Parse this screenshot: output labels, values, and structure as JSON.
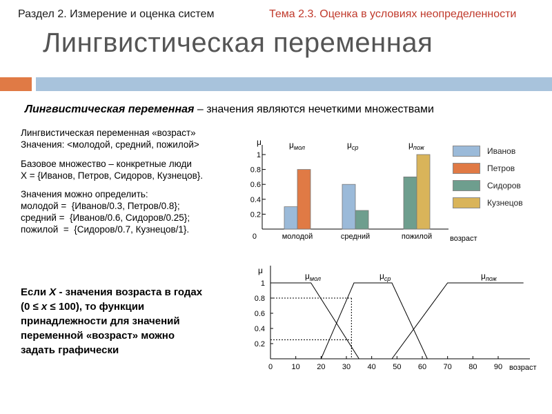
{
  "header": {
    "left": "Раздел 2. Измерение и оценка систем",
    "right": "Тема 2.3. Оценка в условиях неопределенности"
  },
  "title": "Лингвистическая переменная",
  "subtitle": {
    "term": "Лингвистическая переменная",
    "rest": " – значения являются нечеткими множествами"
  },
  "text": {
    "block1": "Лингвистическая переменная «возраст»\nЗначения: <молодой, средний, пожилой>",
    "block2": "Базовое множество – конкретные люди\nX = {Иванов, Петров, Сидоров, Кузнецов}.",
    "block3": "Значения можно определить:\nмолодой =  {Иванов/0.3, Петров/0.8};\nсредний =  {Иванов/0.6, Сидоров/0.25};\nпожилой  =  {Сидоров/0.7, Кузнецов/1}.",
    "bold_note_1": "Если ",
    "bold_note_x": "X",
    "bold_note_2": " - значения возраста в годах (0 ≤ ",
    "bold_note_x2": "x",
    "bold_note_3": " ≤ 100),  то функции принадлежности для значений переменной «возраст» можно задать графически"
  },
  "colors": {
    "accent_orange": "#e07a45",
    "accent_blue": "#a8c3dc",
    "ivanov": "#9bbad9",
    "petrov": "#e07a45",
    "sidorov": "#6e9e8e",
    "kuznetsov": "#d9b45a"
  },
  "chart_data": [
    {
      "type": "bar",
      "categories": [
        "молодой",
        "средний",
        "пожилой"
      ],
      "category_mu_labels": [
        "мол",
        "ср",
        "пож"
      ],
      "series": [
        {
          "name": "Иванов",
          "values": [
            0.3,
            0.6,
            0
          ]
        },
        {
          "name": "Петров",
          "values": [
            0.8,
            0,
            0
          ]
        },
        {
          "name": "Сидоров",
          "values": [
            0,
            0.25,
            0.7
          ]
        },
        {
          "name": "Кузнецов",
          "values": [
            0,
            0,
            1
          ]
        }
      ],
      "ylabel": "μ",
      "xlabel": "возраст",
      "ylim": [
        0,
        1
      ],
      "yticks": [
        "0",
        "0.2",
        "0.4",
        "0.6",
        "0.8",
        "1"
      ],
      "legend": "right"
    },
    {
      "type": "line",
      "ylabel": "μ",
      "xlabel": "возраст",
      "xlim": [
        0,
        100
      ],
      "ylim": [
        0,
        1
      ],
      "xticks": [
        "0",
        "10",
        "20",
        "30",
        "40",
        "50",
        "60",
        "70",
        "80",
        "90"
      ],
      "yticks": [
        "0.2",
        "0.4",
        "0.6",
        "0.8",
        "1"
      ],
      "series": [
        {
          "label": "мол",
          "points": [
            [
              0,
              1
            ],
            [
              16,
              1
            ],
            [
              35,
              0
            ]
          ]
        },
        {
          "label": "ср",
          "points": [
            [
              20,
              0
            ],
            [
              33,
              1
            ],
            [
              48,
              1
            ],
            [
              62,
              0
            ]
          ]
        },
        {
          "label": "пож",
          "points": [
            [
              48,
              0
            ],
            [
              70,
              1
            ],
            [
              100,
              1
            ]
          ]
        }
      ],
      "guides": [
        {
          "x": 32,
          "y": 0.8
        },
        {
          "x": 32,
          "y": 0.25
        }
      ]
    }
  ]
}
